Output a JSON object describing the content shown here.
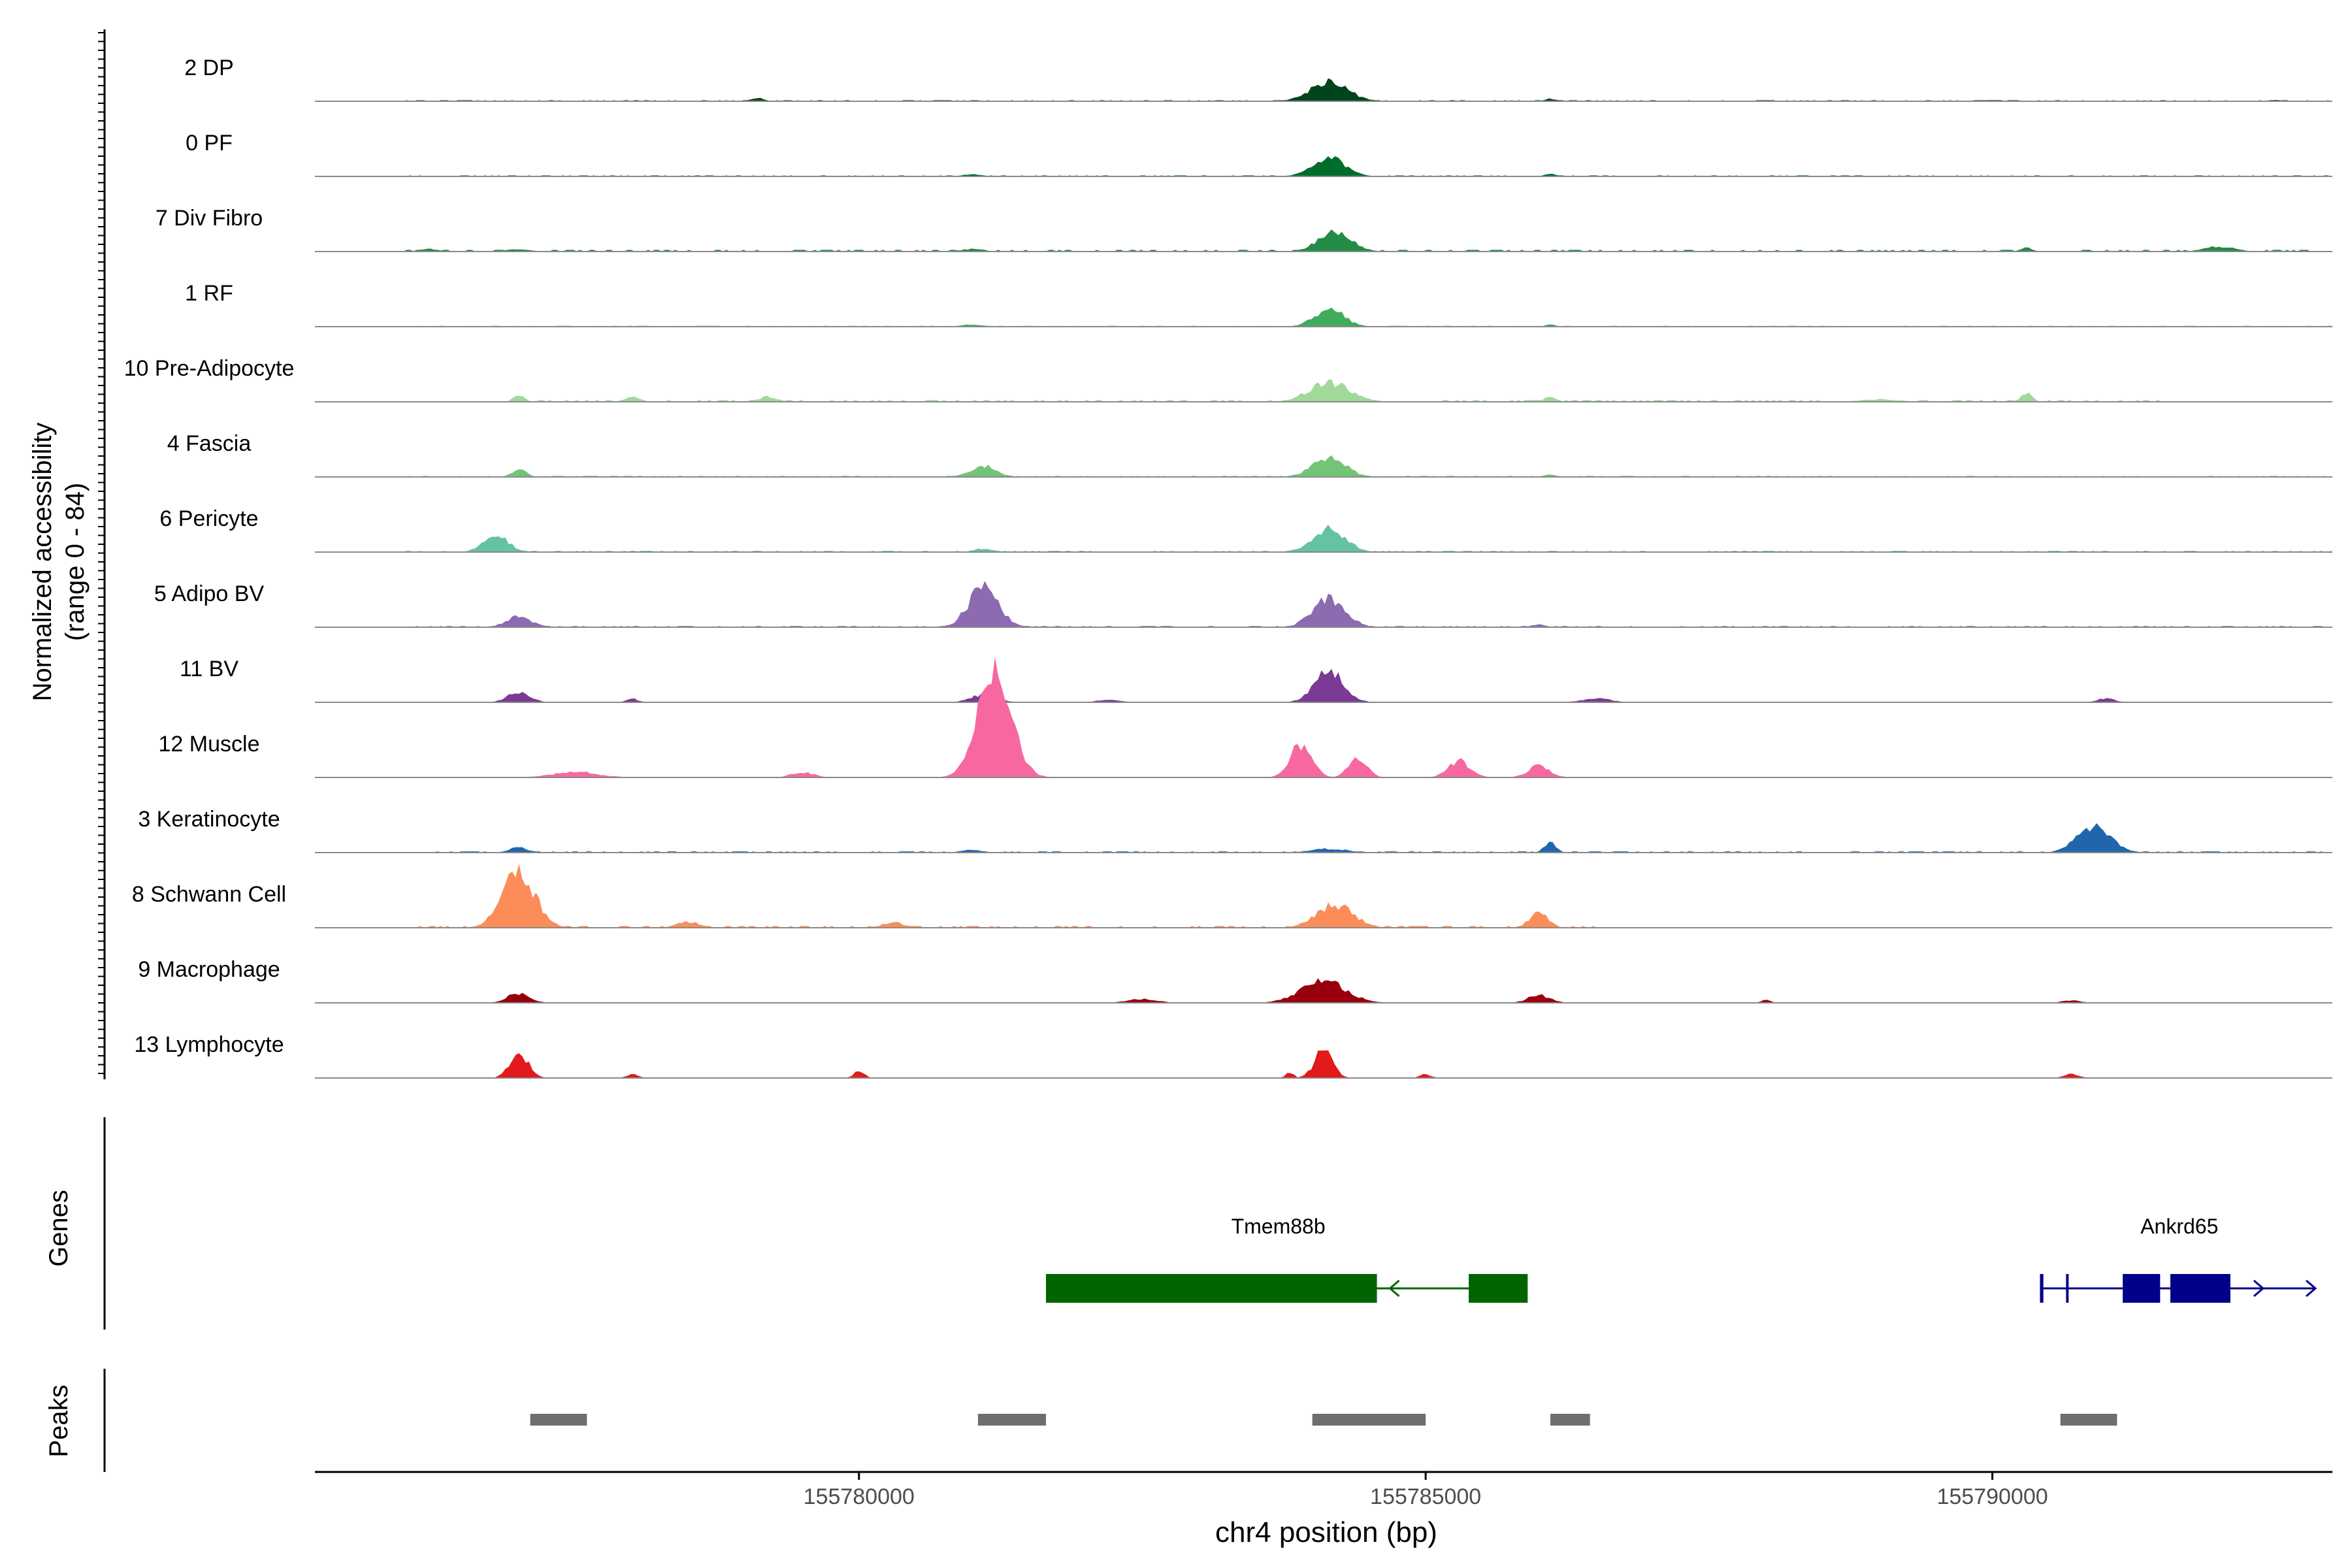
{
  "chart_data": {
    "type": "area",
    "chromosome": "chr4",
    "xlim": [
      155775200,
      155793000
    ],
    "xticks": [
      155780000,
      155785000,
      155790000
    ],
    "xlabel": "chr4 position (bp)",
    "ylabel": "Normalized accessibility",
    "ylabel_range": "(range 0 - 84)",
    "ymax": 84,
    "genes_label": "Genes",
    "peaks_label": "Peaks",
    "tracks": [
      {
        "name": "2 DP",
        "color": "#00441b",
        "peaks": [
          [
            155779100,
            3,
            150
          ],
          [
            155784150,
            16,
            500
          ],
          [
            155786100,
            2,
            150
          ],
          [
            155790000,
            1,
            200
          ],
          [
            155792500,
            1,
            200
          ]
        ],
        "baseline": [
          [
            155776000,
            155793000,
            0.5
          ]
        ]
      },
      {
        "name": "0 PF",
        "color": "#006d2c",
        "peaks": [
          [
            155781000,
            1.5,
            300
          ],
          [
            155784150,
            14,
            450
          ],
          [
            155786100,
            2,
            150
          ]
        ],
        "baseline": [
          [
            155776000,
            155793000,
            0.5
          ]
        ]
      },
      {
        "name": "7 Div Fibro",
        "color": "#238b45",
        "peaks": [
          [
            155776200,
            2,
            250
          ],
          [
            155777000,
            2,
            300
          ],
          [
            155781000,
            2,
            300
          ],
          [
            155784200,
            15,
            450
          ],
          [
            155790300,
            3,
            150
          ],
          [
            155792000,
            4,
            400
          ]
        ],
        "baseline": [
          [
            155776000,
            155792800,
            0.8
          ]
        ]
      },
      {
        "name": "1 RF",
        "color": "#41ab5d",
        "peaks": [
          [
            155781000,
            1.5,
            300
          ],
          [
            155784150,
            14,
            400
          ],
          [
            155786100,
            1.5,
            150
          ]
        ],
        "baseline": [
          [
            155776000,
            155793000,
            0.4
          ]
        ]
      },
      {
        "name": "10 Pre-Adipocyte",
        "color": "#a1d99b",
        "peaks": [
          [
            155777000,
            5,
            150
          ],
          [
            155778000,
            4,
            200
          ],
          [
            155779200,
            4,
            250
          ],
          [
            155784150,
            15,
            550
          ],
          [
            155786100,
            4,
            150
          ],
          [
            155790300,
            7,
            150
          ],
          [
            155789000,
            2,
            500
          ]
        ],
        "baseline": [
          [
            155777000,
            155791500,
            0.8
          ]
        ]
      },
      {
        "name": "4 Fascia",
        "color": "#74c476",
        "peaks": [
          [
            155777000,
            6,
            200
          ],
          [
            155781100,
            9,
            350
          ],
          [
            155784150,
            15,
            450
          ],
          [
            155786100,
            2,
            150
          ]
        ],
        "baseline": [
          [
            155776000,
            155793000,
            0.5
          ]
        ]
      },
      {
        "name": "6 Pericyte",
        "color": "#66c2a4",
        "peaks": [
          [
            155776800,
            12,
            350
          ],
          [
            155781100,
            3,
            250
          ],
          [
            155784150,
            18,
            450
          ]
        ],
        "baseline": [
          [
            155776000,
            155793000,
            0.6
          ]
        ]
      },
      {
        "name": "5 Adipo BV",
        "color": "#8c6bb1",
        "peaks": [
          [
            155777000,
            8,
            350
          ],
          [
            155781100,
            32,
            400
          ],
          [
            155784150,
            22,
            450
          ],
          [
            155786000,
            2,
            200
          ]
        ],
        "baseline": [
          [
            155776000,
            155793000,
            0.6
          ]
        ]
      },
      {
        "name": "11 BV",
        "color": "#7a3a95",
        "peaks": [
          [
            155777000,
            8,
            300
          ],
          [
            155778000,
            3,
            150
          ],
          [
            155781100,
            6,
            350
          ],
          [
            155782200,
            2,
            300
          ],
          [
            155784150,
            24,
            400
          ],
          [
            155786500,
            3,
            400
          ],
          [
            155791000,
            3,
            250
          ]
        ],
        "baseline": []
      },
      {
        "name": "12 Muscle",
        "color": "#f768a1",
        "peaks": [
          [
            155777500,
            3,
            600
          ],
          [
            155779500,
            3,
            300
          ],
          [
            155781200,
            60,
            450
          ],
          [
            155783900,
            18,
            300
          ],
          [
            155784400,
            10,
            250
          ],
          [
            155785300,
            9,
            300
          ],
          [
            155786000,
            6,
            300
          ]
        ],
        "baseline": []
      },
      {
        "name": "3 Keratinocyte",
        "color": "#2166ac",
        "peaks": [
          [
            155777000,
            4,
            250
          ],
          [
            155781000,
            2,
            300
          ],
          [
            155784150,
            3,
            500
          ],
          [
            155786100,
            9,
            150
          ],
          [
            155790900,
            22,
            450
          ]
        ],
        "baseline": [
          [
            155776000,
            155793000,
            0.6
          ]
        ]
      },
      {
        "name": "8 Schwann Cell",
        "color": "#fc8d59",
        "peaks": [
          [
            155777000,
            42,
            450
          ],
          [
            155778500,
            5,
            300
          ],
          [
            155780300,
            4,
            300
          ],
          [
            155784200,
            18,
            500
          ],
          [
            155786000,
            12,
            250
          ]
        ],
        "baseline": [
          [
            155776000,
            155786500,
            0.8
          ]
        ]
      },
      {
        "name": "9 Macrophage",
        "color": "#99000d",
        "peaks": [
          [
            155777000,
            8,
            300
          ],
          [
            155782500,
            3,
            400
          ],
          [
            155784100,
            18,
            600
          ],
          [
            155786000,
            6,
            300
          ],
          [
            155788000,
            2,
            150
          ],
          [
            155790700,
            2,
            250
          ]
        ],
        "baseline": []
      },
      {
        "name": "13 Lymphocyte",
        "color": "#e31a1c",
        "peaks": [
          [
            155777000,
            20,
            250
          ],
          [
            155778000,
            3,
            150
          ],
          [
            155780000,
            5,
            150
          ],
          [
            155783800,
            5,
            100
          ],
          [
            155784100,
            22,
            250
          ],
          [
            155785000,
            3,
            150
          ],
          [
            155790700,
            3,
            200
          ]
        ],
        "baseline": []
      }
    ],
    "genes": [
      {
        "name": "Tmem88b",
        "color": "#006400",
        "strand": "-",
        "line": [
          155781650,
          155785900
        ],
        "exons": [
          [
            155781650,
            155784570
          ],
          [
            155785380,
            155785900
          ]
        ],
        "label_x": 155783700
      },
      {
        "name": "Ankrd65",
        "color": "#00008b",
        "strand": "+",
        "line": [
          155790420,
          155792850
        ],
        "exons": [
          [
            155790420,
            155790450
          ],
          [
            155790650,
            155790670
          ],
          [
            155791150,
            155791480
          ],
          [
            155791570,
            155792100
          ]
        ],
        "label_x": 155791650
      }
    ],
    "peak_regions": [
      [
        155777100,
        155777600
      ],
      [
        155781050,
        155781650
      ],
      [
        155784000,
        155785000
      ],
      [
        155786100,
        155786450
      ],
      [
        155790600,
        155791100
      ]
    ]
  }
}
